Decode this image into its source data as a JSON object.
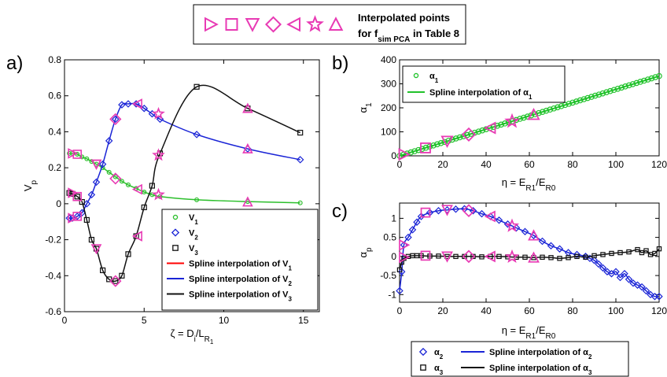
{
  "top_legend": {
    "line1": "Interpolated points",
    "line2_prefix": "for f",
    "line2_sub": "sim PCA",
    "line2_suffix": " in Table 8",
    "marker_color": "#e83ab4",
    "markers": [
      "triangle-right-icon",
      "square-icon",
      "triangle-down-icon",
      "diamond-icon",
      "triangle-left-icon",
      "star-icon",
      "triangle-up-icon"
    ]
  },
  "colors": {
    "v1": "#2cbf2c",
    "v2": "#1a24d6",
    "v3": "#111111",
    "pink": "#e83ab4",
    "red": "#ff0000",
    "alpha1_line": "#21c22b"
  },
  "chart_data": [
    {
      "panel": "a)",
      "type": "line",
      "xlabel_main": "ζ = D",
      "xlabel_sub1": "i",
      "xlabel_mid": "/L",
      "xlabel_sub2": "R",
      "xlabel_sub3": "1",
      "ylabel": "V",
      "ylabel_sub": "p",
      "xlim": [
        0,
        16
      ],
      "ylim": [
        -0.6,
        0.8
      ],
      "xticks": [
        0,
        5,
        10,
        15
      ],
      "yticks": [
        -0.6,
        -0.4,
        -0.2,
        0,
        0.2,
        0.4,
        0.6,
        0.8
      ],
      "legend": {
        "placement": "bottom-right",
        "entries": [
          {
            "main": "V",
            "sub": "1",
            "kind": "circle",
            "color": "#2cbf2c"
          },
          {
            "main": "V",
            "sub": "2",
            "kind": "diamond",
            "color": "#1a24d6"
          },
          {
            "main": "V",
            "sub": "3",
            "kind": "square",
            "color": "#111111"
          },
          {
            "main": "Spline interpolation of V",
            "sub": "1",
            "kind": "line",
            "color": "#ff0000"
          },
          {
            "main": "Spline interpolation of V",
            "sub": "2",
            "kind": "line",
            "color": "#1a24d6"
          },
          {
            "main": "Spline interpolation of V",
            "sub": "3",
            "kind": "line",
            "color": "#111111"
          }
        ]
      },
      "series": [
        {
          "name": "V1",
          "marker": "circle",
          "color": "#2cbf2c",
          "x": [
            0.3,
            0.5,
            0.8,
            1.1,
            1.4,
            1.7,
            2,
            2.4,
            2.8,
            3.2,
            3.6,
            4,
            4.5,
            5,
            5.5,
            6,
            8.3,
            11.5,
            14.8
          ],
          "y": [
            0.28,
            0.28,
            0.275,
            0.26,
            0.25,
            0.235,
            0.22,
            0.2,
            0.175,
            0.15,
            0.125,
            0.105,
            0.085,
            0.065,
            0.05,
            0.04,
            0.022,
            0.012,
            0.005
          ]
        },
        {
          "name": "V2",
          "marker": "diamond",
          "color": "#1a24d6",
          "x": [
            0.3,
            0.5,
            0.8,
            1.1,
            1.4,
            1.7,
            2,
            2.4,
            2.8,
            3.2,
            3.6,
            4,
            4.5,
            5,
            5.5,
            6,
            8.3,
            11.5,
            14.8
          ],
          "y": [
            -0.08,
            -0.08,
            -0.07,
            -0.05,
            0,
            0.05,
            0.12,
            0.22,
            0.35,
            0.47,
            0.55,
            0.555,
            0.555,
            0.53,
            0.5,
            0.47,
            0.385,
            0.305,
            0.245
          ]
        },
        {
          "name": "V3",
          "marker": "square",
          "color": "#111111",
          "x": [
            0.3,
            0.5,
            0.8,
            1.1,
            1.4,
            1.7,
            2,
            2.4,
            2.8,
            3.2,
            3.6,
            4,
            4.5,
            5,
            5.5,
            6,
            8.3,
            11.5,
            14.8
          ],
          "y": [
            0.06,
            0.055,
            0.04,
            0.01,
            -0.09,
            -0.2,
            -0.25,
            -0.37,
            -0.42,
            -0.43,
            -0.4,
            -0.28,
            -0.18,
            -0.02,
            0.1,
            0.28,
            0.65,
            0.53,
            0.395
          ]
        }
      ],
      "interpolated": {
        "x": [
          0.5,
          0.8,
          2,
          3.2,
          4.6,
          5.9,
          11.5
        ],
        "marker": [
          "triangle-right",
          "square",
          "triangle-down",
          "diamond",
          "triangle-left",
          "star",
          "triangle-up"
        ],
        "v1": [
          0.28,
          0.275,
          0.22,
          0.14,
          0.08,
          0.05,
          0.01
        ],
        "v2": [
          -0.08,
          -0.07,
          0.22,
          0.47,
          0.555,
          0.5,
          0.305
        ],
        "v3": [
          0.06,
          0.04,
          -0.25,
          -0.43,
          -0.18,
          0.27,
          0.53
        ]
      }
    },
    {
      "panel": "b)",
      "type": "line",
      "xlabel_main": "η = E",
      "xlabel_sub1": "R1",
      "xlabel_mid": "/E",
      "xlabel_sub2": "R0",
      "ylabel": "α",
      "ylabel_sub": "1",
      "xlim": [
        0,
        120
      ],
      "ylim": [
        0,
        400
      ],
      "xticks": [
        0,
        20,
        40,
        60,
        80,
        100,
        120
      ],
      "yticks": [
        0,
        100,
        200,
        300,
        400
      ],
      "legend": {
        "placement": "top-left",
        "entries": [
          {
            "main": "α",
            "sub": "1",
            "kind": "circle",
            "color": "#21c22b"
          },
          {
            "main": "Spline interpolation of α",
            "sub": "1",
            "kind": "line",
            "color": "#21c22b"
          }
        ]
      },
      "series": [
        {
          "name": "α1",
          "marker": "circle",
          "color": "#21c22b",
          "slope": 2.77,
          "x_start": 0,
          "x_end": 120,
          "n_points": 70
        }
      ],
      "interpolated": {
        "x": [
          2,
          12,
          22,
          32,
          42,
          52,
          62
        ],
        "y": [
          6,
          33,
          61,
          89,
          116,
          144,
          172
        ],
        "marker": [
          "triangle-right",
          "square",
          "triangle-down",
          "diamond",
          "triangle-left",
          "star",
          "triangle-up"
        ]
      }
    },
    {
      "panel": "c)",
      "type": "line",
      "xlabel_main": "η = E",
      "xlabel_sub1": "R1",
      "xlabel_mid": "/E",
      "xlabel_sub2": "R0",
      "ylabel": "α",
      "ylabel_sub": "p",
      "xlim": [
        0,
        120
      ],
      "ylim": [
        -1.2,
        1.4
      ],
      "xticks": [
        0,
        20,
        40,
        60,
        80,
        100,
        120
      ],
      "yticks": [
        -1,
        -0.5,
        0,
        0.5,
        1
      ],
      "legend": {
        "placement": "below",
        "entries": [
          {
            "main": "α",
            "sub": "2",
            "kind": "diamond",
            "color": "#1a24d6"
          },
          {
            "main": "Spline interpolation of α",
            "sub": "2",
            "kind": "line",
            "color": "#1a24d6"
          },
          {
            "main": "α",
            "sub": "3",
            "kind": "square",
            "color": "#111111"
          },
          {
            "main": "Spline interpolation of α",
            "sub": "3",
            "kind": "line",
            "color": "#111111"
          }
        ]
      },
      "series": [
        {
          "name": "α2",
          "marker": "diamond",
          "color": "#1a24d6",
          "x": [
            0,
            1,
            2,
            4,
            6,
            8,
            10,
            14,
            18,
            22,
            26,
            30,
            34,
            38,
            42,
            46,
            50,
            54,
            58,
            62,
            66,
            70,
            74,
            78,
            82,
            86,
            88,
            90,
            92,
            94,
            96,
            98,
            100,
            102,
            104,
            106,
            108,
            110,
            112,
            114,
            116,
            118,
            120
          ],
          "y": [
            -0.9,
            -0.4,
            0.3,
            0.5,
            0.7,
            0.9,
            1.05,
            1.15,
            1.2,
            1.22,
            1.24,
            1.25,
            1.2,
            1.12,
            1.05,
            0.95,
            0.85,
            0.75,
            0.65,
            0.55,
            0.4,
            0.28,
            0.2,
            0.1,
            0.05,
            0.0,
            -0.05,
            -0.1,
            -0.2,
            -0.3,
            -0.4,
            -0.45,
            -0.4,
            -0.55,
            -0.45,
            -0.6,
            -0.7,
            -0.75,
            -0.8,
            -0.9,
            -1.0,
            -1.05,
            -1.05
          ]
        },
        {
          "name": "α3",
          "marker": "square",
          "color": "#111111",
          "x": [
            0,
            1,
            2,
            4,
            6,
            8,
            10,
            14,
            18,
            22,
            26,
            30,
            34,
            38,
            42,
            46,
            50,
            54,
            58,
            62,
            66,
            70,
            74,
            78,
            82,
            86,
            90,
            94,
            98,
            102,
            106,
            110,
            112,
            114,
            116,
            118,
            120
          ],
          "y": [
            -0.35,
            -0.15,
            -0.05,
            0,
            0.02,
            0.02,
            0.02,
            0.01,
            0.01,
            0.0,
            0.0,
            0.0,
            0.0,
            -0.01,
            0.0,
            0.0,
            -0.01,
            -0.02,
            -0.02,
            -0.03,
            -0.02,
            -0.03,
            -0.05,
            -0.03,
            0.0,
            -0.02,
            0.02,
            0.05,
            0.08,
            0.1,
            0.12,
            0.18,
            0.1,
            0.15,
            0.05,
            0.08,
            0.2
          ]
        }
      ],
      "interpolated": {
        "x": [
          2,
          12,
          22,
          32,
          42,
          52,
          62
        ],
        "marker": [
          "triangle-right",
          "square",
          "triangle-down",
          "diamond",
          "triangle-left",
          "star",
          "triangle-up"
        ],
        "a2": [
          0.3,
          1.15,
          1.22,
          1.2,
          1.05,
          0.8,
          0.55
        ],
        "a3": [
          -0.02,
          0.02,
          0.0,
          0.0,
          0.0,
          -0.01,
          -0.03
        ]
      }
    }
  ]
}
